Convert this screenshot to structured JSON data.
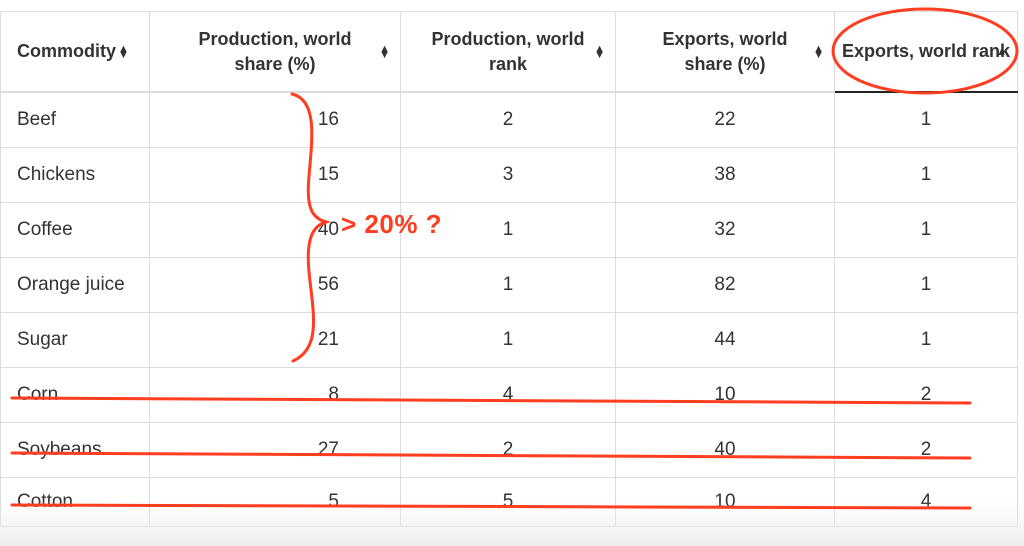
{
  "table": {
    "headers": [
      {
        "label": "Commodity"
      },
      {
        "label": "Production, world share (%)"
      },
      {
        "label": "Production, world rank"
      },
      {
        "label": "Exports, world share (%)"
      },
      {
        "label": "Exports, world rank",
        "sorted": "ascending"
      }
    ],
    "rows": [
      {
        "commodity": "Beef",
        "prod_share": "16",
        "prod_rank": "2",
        "exp_share": "22",
        "exp_rank": "1",
        "struck": false
      },
      {
        "commodity": "Chickens",
        "prod_share": "15",
        "prod_rank": "3",
        "exp_share": "38",
        "exp_rank": "1",
        "struck": false
      },
      {
        "commodity": "Coffee",
        "prod_share": "40",
        "prod_rank": "1",
        "exp_share": "32",
        "exp_rank": "1",
        "struck": false
      },
      {
        "commodity": "Orange juice",
        "prod_share": "56",
        "prod_rank": "1",
        "exp_share": "82",
        "exp_rank": "1",
        "struck": false
      },
      {
        "commodity": "Sugar",
        "prod_share": "21",
        "prod_rank": "1",
        "exp_share": "44",
        "exp_rank": "1",
        "struck": false
      },
      {
        "commodity": "Corn",
        "prod_share": "8",
        "prod_rank": "4",
        "exp_share": "10",
        "exp_rank": "2",
        "struck": true
      },
      {
        "commodity": "Soybeans",
        "prod_share": "27",
        "prod_rank": "2",
        "exp_share": "40",
        "exp_rank": "2",
        "struck": true
      },
      {
        "commodity": "Cotton",
        "prod_share": "5",
        "prod_rank": "5",
        "exp_share": "10",
        "exp_rank": "4",
        "struck": true
      }
    ]
  },
  "annotations": {
    "brace_note": "> 20% ?",
    "color": "#ff3d1f"
  },
  "icons": {
    "sort_both": "sort-both-icon",
    "sort_asc": "sort-asc-icon"
  }
}
